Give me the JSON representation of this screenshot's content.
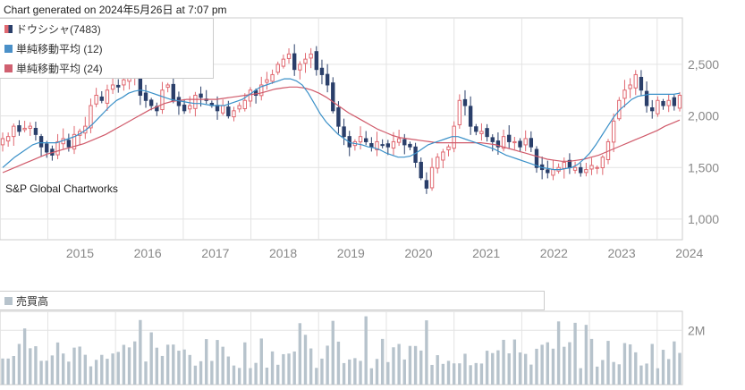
{
  "header": {
    "generated": "Chart generated on 2024年5月26日 at 7:07 pm"
  },
  "legend": [
    {
      "label": "ドウシシャ(7483)",
      "color": "#e06870",
      "color2": "#2a3f6a"
    },
    {
      "label": "単純移動平均 (12)",
      "color": "#4a90c8"
    },
    {
      "label": "単純移動平均 (24)",
      "color": "#d06070"
    }
  ],
  "watermark": "S&P Global Chartworks",
  "volume_label": "売買高",
  "colors": {
    "up": "#e06870",
    "down": "#2a3f6a",
    "ma12": "#3a90c8",
    "ma24": "#d05a6a",
    "volume": "#b7c3cc",
    "grid": "#e3e3e3"
  },
  "chart_data": {
    "type": "candlestick",
    "price_axis": {
      "ticks": [
        1000,
        1500,
        2000,
        2500
      ],
      "tick_labels": [
        "1,000",
        "1,500",
        "2,000",
        "2,500"
      ],
      "ylim": [
        800,
        2950
      ]
    },
    "x_axis": {
      "labels": [
        "2015",
        "2016",
        "2017",
        "2018",
        "2019",
        "2020",
        "2021",
        "2022",
        "2023",
        "2024"
      ],
      "start": "2014-05",
      "end": "2024-05"
    },
    "volume_axis": {
      "ticks": [
        2000000
      ],
      "tick_labels": [
        "2M"
      ],
      "ylim": [
        0,
        2700000
      ]
    },
    "monthly_close": [
      1780,
      1800,
      1900,
      1850,
      1880,
      1900,
      1820,
      1700,
      1650,
      1620,
      1750,
      1780,
      1700,
      1820,
      1850,
      1900,
      2100,
      2200,
      2150,
      2250,
      2300,
      2280,
      2350,
      2400,
      2450,
      2200,
      2150,
      2100,
      2050,
      2250,
      2300,
      2150,
      2100,
      2050,
      2100,
      2200,
      2180,
      2150,
      2100,
      2050,
      2100,
      2000,
      2050,
      2100,
      2150,
      2250,
      2200,
      2300,
      2350,
      2400,
      2500,
      2550,
      2600,
      2450,
      2500,
      2550,
      2600,
      2450,
      2400,
      2300,
      2050,
      1900,
      1800,
      1700,
      1750,
      1800,
      1750,
      1700,
      1750,
      1720,
      1700,
      1750,
      1780,
      1720,
      1700,
      1550,
      1400,
      1300,
      1500,
      1600,
      1650,
      1700,
      1900,
      2150,
      2100,
      1900,
      1850,
      1850,
      1800,
      1750,
      1700,
      1800,
      1750,
      1750,
      1700,
      1780,
      1700,
      1500,
      1480,
      1450,
      1480,
      1500,
      1550,
      1500,
      1500,
      1450,
      1480,
      1520,
      1500,
      1600,
      1750,
      1950,
      2150,
      2250,
      2300,
      2400,
      2250,
      2100,
      2050,
      2150,
      2100,
      2150,
      2100,
      2200
    ],
    "ma12": [
      1500,
      1550,
      1600,
      1640,
      1680,
      1720,
      1740,
      1740,
      1740,
      1740,
      1760,
      1780,
      1800,
      1830,
      1870,
      1920,
      1980,
      2040,
      2100,
      2150,
      2180,
      2220,
      2240,
      2250,
      2240,
      2220,
      2200,
      2180,
      2160,
      2150,
      2140,
      2130,
      2120,
      2120,
      2110,
      2100,
      2100,
      2100,
      2120,
      2140,
      2160,
      2200,
      2240,
      2280,
      2300,
      2320,
      2340,
      2360,
      2360,
      2340,
      2300,
      2220,
      2120,
      2020,
      1940,
      1880,
      1820,
      1780,
      1740,
      1730,
      1720,
      1700,
      1690,
      1670,
      1640,
      1620,
      1600,
      1600,
      1610,
      1640,
      1680,
      1720,
      1740,
      1760,
      1780,
      1800,
      1800,
      1780,
      1760,
      1740,
      1720,
      1700,
      1680,
      1650,
      1620,
      1600,
      1580,
      1560,
      1540,
      1520,
      1500,
      1490,
      1480,
      1480,
      1490,
      1500,
      1530,
      1580,
      1640,
      1720,
      1810,
      1900,
      1990,
      2060,
      2110,
      2160,
      2190,
      2200,
      2210,
      2210,
      2210,
      2210,
      2210,
      2220
    ],
    "ma24": [
      1450,
      1480,
      1510,
      1540,
      1570,
      1600,
      1630,
      1650,
      1670,
      1690,
      1710,
      1730,
      1760,
      1790,
      1820,
      1860,
      1900,
      1940,
      1980,
      2020,
      2060,
      2090,
      2120,
      2140,
      2150,
      2160,
      2160,
      2160,
      2160,
      2160,
      2170,
      2180,
      2190,
      2200,
      2210,
      2220,
      2240,
      2260,
      2270,
      2280,
      2280,
      2270,
      2250,
      2220,
      2180,
      2130,
      2080,
      2030,
      1990,
      1950,
      1910,
      1870,
      1840,
      1810,
      1790,
      1780,
      1770,
      1760,
      1750,
      1740,
      1740,
      1740,
      1740,
      1740,
      1740,
      1740,
      1730,
      1720,
      1700,
      1680,
      1660,
      1640,
      1620,
      1600,
      1580,
      1570,
      1560,
      1560,
      1570,
      1580,
      1600,
      1620,
      1650,
      1680,
      1710,
      1740,
      1770,
      1800,
      1830,
      1860,
      1900,
      1930,
      1960
    ],
    "volume_note": "monthly volume bars, peaks near 2.5M"
  }
}
